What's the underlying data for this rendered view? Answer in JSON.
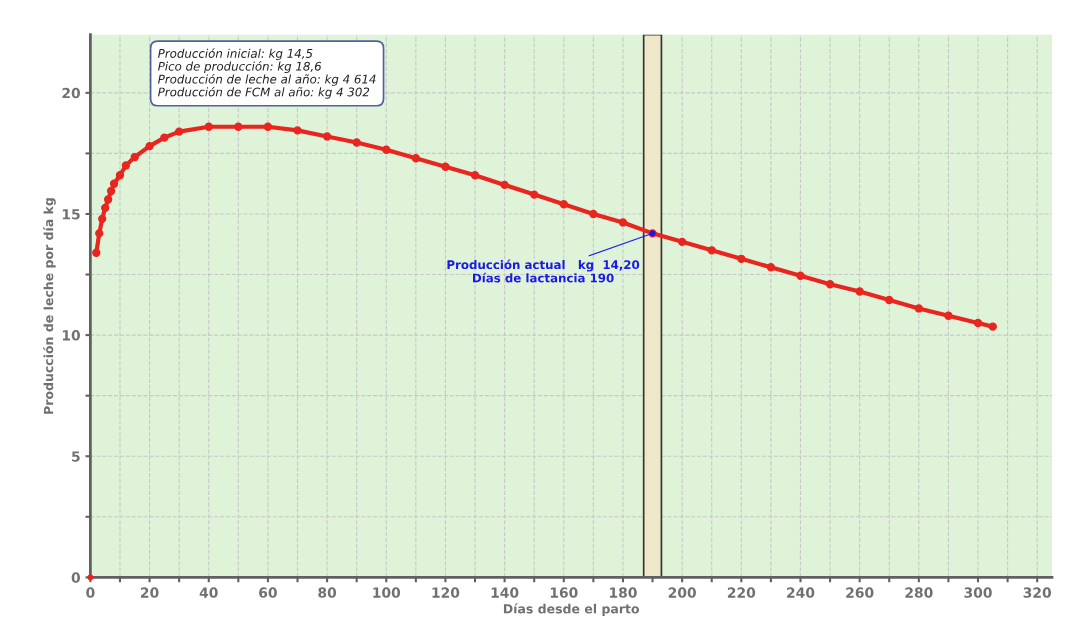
{
  "chart_data": {
    "type": "line",
    "xlabel": "Días desde el parto",
    "ylabel": "Producción de leche por día kg",
    "xlim": [
      0,
      325
    ],
    "ylim": [
      0,
      22.4
    ],
    "xticks": [
      0,
      {
        "value": 10,
        "label": null
      },
      20,
      {
        "value": 30,
        "label": null
      },
      40,
      {
        "value": 50,
        "label": null
      },
      60,
      {
        "value": 70,
        "label": null
      },
      80,
      {
        "value": 90,
        "label": null
      },
      100,
      {
        "value": 110,
        "label": null
      },
      120,
      {
        "value": 130,
        "label": null
      },
      140,
      {
        "value": 150,
        "label": null
      },
      160,
      {
        "value": 170,
        "label": null
      },
      180,
      {
        "value": 190,
        "label": null
      },
      200,
      {
        "value": 210,
        "label": null
      },
      220,
      {
        "value": 230,
        "label": null
      },
      240,
      {
        "value": 250,
        "label": null
      },
      260,
      {
        "value": 270,
        "label": null
      },
      280,
      {
        "value": 290,
        "label": null
      },
      300,
      {
        "value": 310,
        "label": null
      },
      320
    ],
    "yticks": [
      0,
      {
        "value": 2.5,
        "label": null
      },
      5,
      {
        "value": 7.5,
        "label": null
      },
      10,
      {
        "value": 12.5,
        "label": null
      },
      15,
      {
        "value": 17.5,
        "label": null
      },
      20
    ],
    "grid": true,
    "marker": "circle",
    "series": [
      {
        "color": "#e8261f",
        "x": [
          2,
          3,
          4,
          5,
          6,
          7,
          8,
          10,
          12,
          15,
          20,
          25,
          30,
          40,
          50,
          60,
          70,
          80,
          90,
          100,
          110,
          120,
          130,
          140,
          150,
          160,
          170,
          180,
          190,
          200,
          210,
          220,
          230,
          240,
          250,
          260,
          270,
          280,
          290,
          300,
          305
        ],
        "values": [
          13.4,
          14.2,
          14.8,
          15.25,
          15.6,
          15.95,
          16.25,
          16.6,
          17.0,
          17.35,
          17.8,
          18.15,
          18.4,
          18.6,
          18.6,
          18.6,
          18.45,
          18.2,
          17.95,
          17.65,
          17.3,
          16.95,
          16.6,
          16.2,
          15.8,
          15.4,
          15.0,
          14.65,
          14.2,
          13.85,
          13.5,
          13.15,
          12.8,
          12.45,
          12.1,
          11.8,
          11.45,
          11.1,
          10.8,
          10.5,
          10.35
        ]
      },
      {
        "type": "scatter",
        "color": "#e8261f",
        "x": [
          0
        ],
        "values": [
          0
        ]
      },
      {
        "type": "scatter",
        "color": "#1a1ae6",
        "x": [
          190
        ],
        "values": [
          14.2
        ]
      }
    ],
    "bands": [
      {
        "axis": "x",
        "from": 187,
        "to": 193,
        "color": "#efe8c8"
      }
    ],
    "annotations": [
      "Producción inicial: kg 14,5\nPico de producción: kg 18,6\nProducción de leche al año: kg 4 614\nProducción de FCM al año: kg 4 302",
      {
        "text": "Producción actual   kg  14,20\nDías de lactancia 190",
        "x": 190,
        "y": 14.2
      }
    ]
  }
}
